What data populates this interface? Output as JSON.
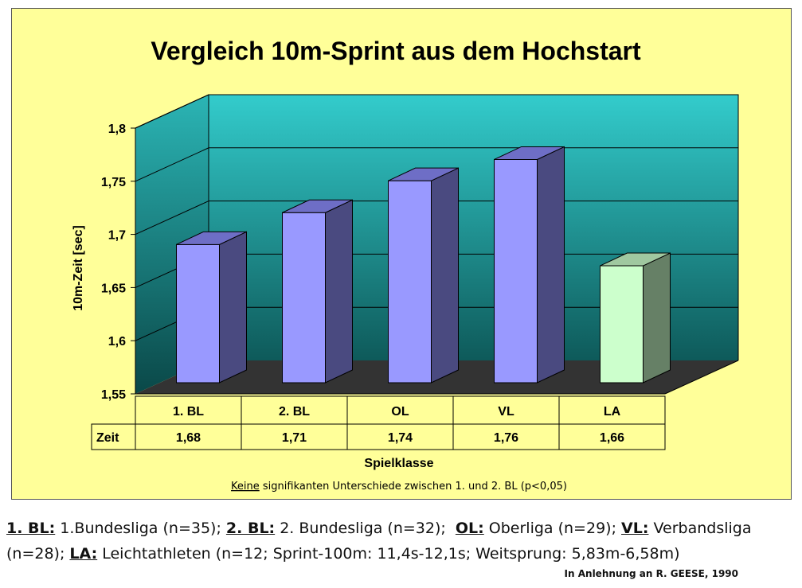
{
  "chart_data": {
    "type": "bar",
    "title": "Vergleich 10m-Sprint aus dem Hochstart",
    "xlabel": "Spielklasse",
    "ylabel": "10m-Zeit [sec]",
    "ylim": [
      1.55,
      1.8
    ],
    "yticks": [
      "1,55",
      "1,6",
      "1,65",
      "1,7",
      "1,75",
      "1,8"
    ],
    "categories": [
      "1. BL",
      "2. BL",
      "OL",
      "VL",
      "LA"
    ],
    "values": [
      1.68,
      1.71,
      1.74,
      1.76,
      1.66
    ],
    "value_labels": [
      "1,68",
      "1,71",
      "1,74",
      "1,76",
      "1,66"
    ],
    "table_row_label": "Zeit",
    "note_underlined": "Keine",
    "note_rest": " signifikanten Unterschiede zwischen 1. und 2. BL (p<0,05)",
    "grid": true,
    "colors": {
      "bar_front": "#9999ff",
      "bar_side": "#4a4a80",
      "bar_top": "#6e6ec6",
      "la_front": "#ccffcc",
      "la_side": "#668066",
      "la_top": "#a0c8a0",
      "wall_top": "#33cccc",
      "wall_bottom": "#0e5a5a",
      "floor": "#333333",
      "background": "#ffff99"
    }
  },
  "legend": {
    "bl1_abbr": "1. BL:",
    "bl1_text": " 1.Bundesliga (n=35);",
    "bl2_abbr": "2. BL:",
    "bl2_text": " 2. Bundesliga (n=32);",
    "ol_abbr": "OL:",
    "ol_text": " Oberliga (n=29);",
    "vl_abbr": "VL:",
    "vl_text": " Verbandsliga (n=28);",
    "la_abbr": "LA:",
    "la_text": " Leichtathleten (n=12; Sprint-100m: 11,4s-12,1s;  Weitsprung: 5,83m-6,58m)"
  },
  "credit": "In Anlehnung an R. GEESE, 1990"
}
